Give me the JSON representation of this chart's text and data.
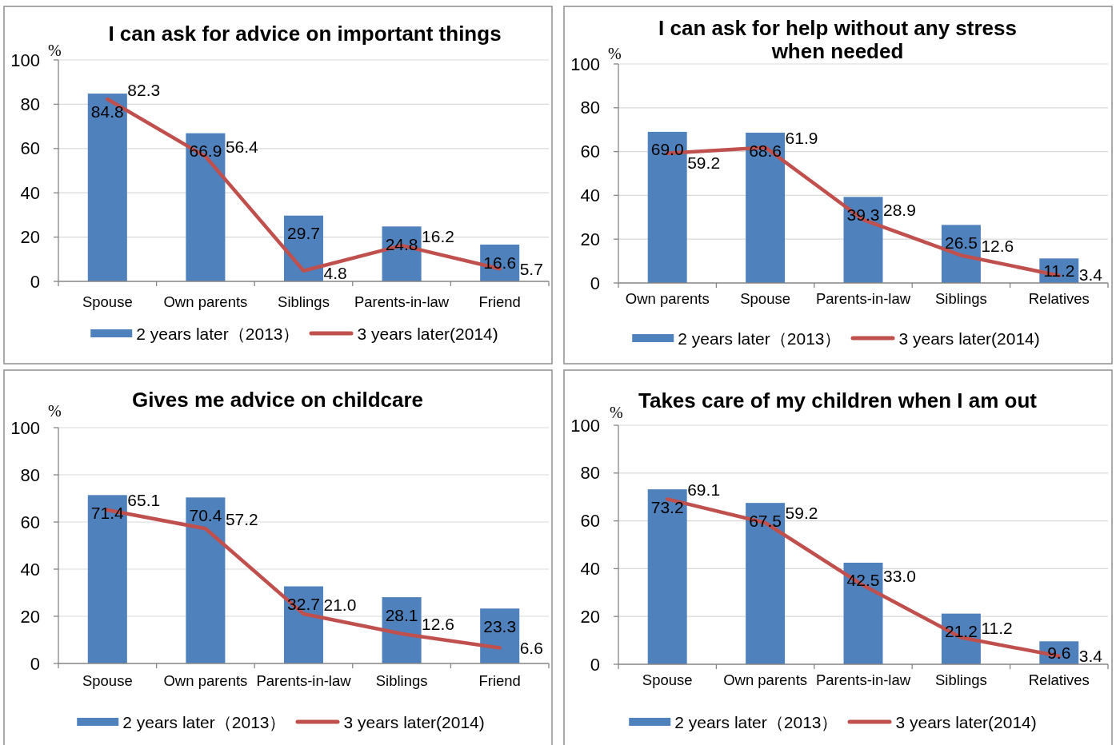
{
  "chart_data": [
    {
      "type": "bar",
      "title": "I can ask for advice on important things",
      "ylabel": "%",
      "categories": [
        "Spouse",
        "Own parents",
        "Siblings",
        "Parents-in-law",
        "Friend"
      ],
      "ylim": [
        0,
        100
      ],
      "yticks": [
        0,
        20,
        40,
        60,
        80,
        100
      ],
      "grid": "y",
      "legend": "bottom",
      "series": [
        {
          "name": "2 years later（2013）",
          "color": "#4f81bd",
          "values": [
            84.8,
            66.9,
            29.7,
            24.8,
            16.6
          ],
          "value_labels": [
            "84.8",
            "66.9",
            "29.7",
            "24.8",
            "16.6"
          ]
        },
        {
          "name": "3 years later(2014)",
          "type": "line",
          "color": "#c0504d",
          "values": [
            82.3,
            56.4,
            4.8,
            16.2,
            5.7
          ],
          "value_labels": [
            "82.3",
            "56.4",
            "4.8",
            "16.2",
            "5.7"
          ]
        }
      ]
    },
    {
      "type": "bar",
      "title": "I can ask for help without any stress when needed",
      "ylabel": "%",
      "categories": [
        "Own parents",
        "Spouse",
        "Parents-in-law",
        "Siblings",
        "Relatives"
      ],
      "ylim": [
        0,
        100
      ],
      "yticks": [
        0,
        20,
        40,
        60,
        80,
        100
      ],
      "grid": "y",
      "legend": "bottom",
      "series": [
        {
          "name": "2 years later（2013）",
          "color": "#4f81bd",
          "values": [
            69.0,
            68.6,
            39.3,
            26.5,
            11.2
          ],
          "value_labels": [
            "69.0",
            "68.6",
            "39.3",
            "26.5",
            "11.2"
          ]
        },
        {
          "name": "3 years later(2014)",
          "type": "line",
          "color": "#c0504d",
          "values": [
            59.2,
            61.9,
            28.9,
            12.6,
            3.4
          ],
          "value_labels": [
            "59.2",
            "61.9",
            "28.9",
            "12.6",
            "3.4"
          ]
        }
      ]
    },
    {
      "type": "bar",
      "title": "Gives me advice on childcare",
      "ylabel": "%",
      "categories": [
        "Spouse",
        "Own parents",
        "Parents-in-law",
        "Siblings",
        "Friend"
      ],
      "ylim": [
        0,
        100
      ],
      "yticks": [
        0,
        20,
        40,
        60,
        80,
        100
      ],
      "grid": "y",
      "legend": "bottom",
      "series": [
        {
          "name": "2 years later（2013）",
          "color": "#4f81bd",
          "values": [
            71.4,
            70.4,
            32.7,
            28.1,
            23.3
          ],
          "value_labels": [
            "71.4",
            "70.4",
            "32.7",
            "28.1",
            "23.3"
          ]
        },
        {
          "name": "3 years later(2014)",
          "type": "line",
          "color": "#c0504d",
          "values": [
            65.1,
            57.2,
            21.0,
            12.6,
            6.6
          ],
          "value_labels": [
            "65.1",
            "57.2",
            "21.0",
            "12.6",
            "6.6"
          ]
        }
      ]
    },
    {
      "type": "bar",
      "title": "Takes care of my children when I am out",
      "ylabel": "%",
      "categories": [
        "Spouse",
        "Own parents",
        "Parents-in-law",
        "Siblings",
        "Relatives"
      ],
      "ylim": [
        0,
        100
      ],
      "yticks": [
        0,
        20,
        40,
        60,
        80,
        100
      ],
      "grid": "y",
      "legend": "bottom",
      "series": [
        {
          "name": "2 years later（2013）",
          "color": "#4f81bd",
          "values": [
            73.2,
            67.5,
            42.5,
            21.2,
            9.6
          ],
          "value_labels": [
            "73.2",
            "67.5",
            "42.5",
            "21.2",
            "9.6"
          ]
        },
        {
          "name": "3 years later(2014)",
          "type": "line",
          "color": "#c0504d",
          "values": [
            69.1,
            59.2,
            33.0,
            11.2,
            3.4
          ],
          "value_labels": [
            "69.1",
            "59.2",
            "33.0",
            "11.2",
            "3.4"
          ]
        }
      ]
    }
  ]
}
